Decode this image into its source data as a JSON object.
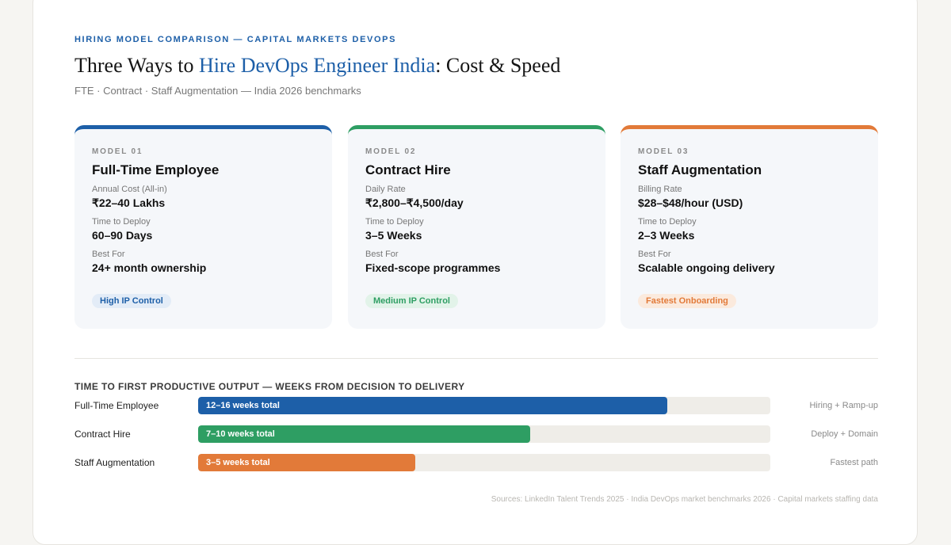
{
  "header": {
    "eyebrow": "HIRING MODEL COMPARISON — CAPITAL MARKETS DEVOPS",
    "title_pre": "Three Ways to ",
    "title_highlight": "Hire DevOps Engineer India",
    "title_post": ": Cost & Speed",
    "subtitle": "FTE · Contract · Staff Augmentation — India 2026 benchmarks"
  },
  "cards": [
    {
      "model": "MODEL 01",
      "name": "Full-Time Employee",
      "accent": "#1d5fa8",
      "fields": [
        {
          "label": "Annual Cost (All-in)",
          "value": "₹22–40 Lakhs"
        },
        {
          "label": "Time to Deploy",
          "value": "60–90 Days"
        },
        {
          "label": "Best For",
          "value": "24+ month ownership"
        }
      ],
      "badge": "High IP Control",
      "badge_bg": "#e3ecf7",
      "badge_color": "#1d5fa8"
    },
    {
      "model": "MODEL 02",
      "name": "Contract Hire",
      "accent": "#2e9e63",
      "fields": [
        {
          "label": "Daily Rate",
          "value": "₹2,800–₹4,500/day"
        },
        {
          "label": "Time to Deploy",
          "value": "3–5 Weeks"
        },
        {
          "label": "Best For",
          "value": "Fixed-scope programmes"
        }
      ],
      "badge": "Medium IP Control",
      "badge_bg": "#e2f3e9",
      "badge_color": "#2e9e63"
    },
    {
      "model": "MODEL 03",
      "name": "Staff Augmentation",
      "accent": "#e27a39",
      "fields": [
        {
          "label": "Billing Rate",
          "value": "$28–$48/hour (USD)"
        },
        {
          "label": "Time to Deploy",
          "value": "2–3 Weeks"
        },
        {
          "label": "Best For",
          "value": "Scalable ongoing delivery"
        }
      ],
      "badge": "Fastest Onboarding",
      "badge_bg": "#fbeadd",
      "badge_color": "#e27a39"
    }
  ],
  "chart_data": {
    "type": "bar",
    "title": "TIME TO FIRST PRODUCTIVE OUTPUT — WEEKS FROM DECISION TO DELIVERY",
    "orientation": "horizontal",
    "categories": [
      "Full-Time Employee",
      "Contract Hire",
      "Staff Augmentation"
    ],
    "fill_fraction": [
      0.82,
      0.58,
      0.38
    ],
    "bar_labels": [
      "12–16 weeks total",
      "7–10 weeks total",
      "3–5 weeks total"
    ],
    "notes": [
      "Hiring + Ramp-up",
      "Deploy + Domain",
      "Fastest path"
    ],
    "colors": [
      "#1d5fa8",
      "#2e9e63",
      "#e27a39"
    ]
  },
  "footer": {
    "sources": "Sources: LinkedIn Talent Trends 2025 · India DevOps market benchmarks 2026 · Capital markets staffing data"
  }
}
